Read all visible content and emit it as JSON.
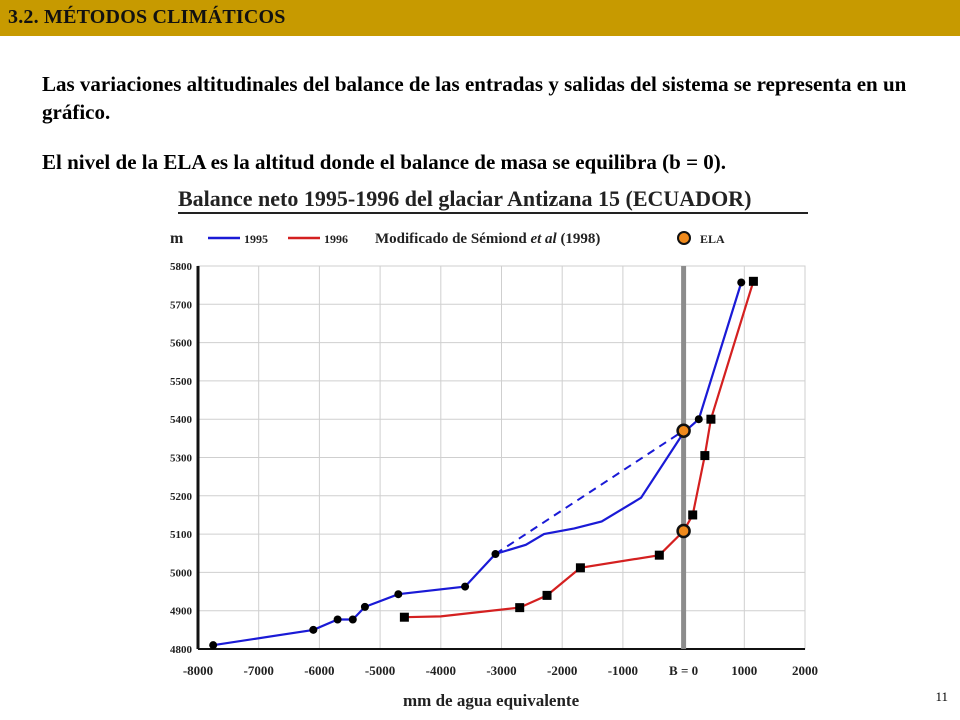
{
  "header": {
    "title": "3.2. MÉTODOS CLIMÁTICOS"
  },
  "text": {
    "para1": "Las variaciones altitudinales del balance de las entradas y salidas del sistema se representa en un gráfico.",
    "para2": "El nivel de la ELA es la altitud donde el balance de masa se equilibra (b = 0)."
  },
  "page_number": "11",
  "chart_data": {
    "type": "line",
    "title": "Balance neto 1995-1996 del glaciar Antizana 15 (ECUADOR)",
    "ylabel": "m",
    "xlabel": "mm de agua equivalente",
    "credit": "Modificado de Sémiond et al (1998)",
    "xlim": [
      -8000,
      2000
    ],
    "ylim": [
      4800,
      5800
    ],
    "x_ticks": [
      {
        "v": -8000,
        "label": "-8000"
      },
      {
        "v": -7000,
        "label": "-7000"
      },
      {
        "v": -6000,
        "label": "-6000"
      },
      {
        "v": -5000,
        "label": "-5000"
      },
      {
        "v": -4000,
        "label": "-4000"
      },
      {
        "v": -3000,
        "label": "-3000"
      },
      {
        "v": -2000,
        "label": "-2000"
      },
      {
        "v": -1000,
        "label": "-1000"
      },
      {
        "v": 0,
        "label": "B = 0"
      },
      {
        "v": 1000,
        "label": "1000"
      },
      {
        "v": 2000,
        "label": "2000"
      }
    ],
    "y_ticks": [
      4800,
      4900,
      5000,
      5100,
      5200,
      5300,
      5400,
      5500,
      5600,
      5700,
      5800
    ],
    "grid": true,
    "colors": {
      "1995": "#1a1ad6",
      "1996": "#d42020",
      "ela": "#f08a1c",
      "zero_line": "#8c8c8c"
    },
    "series": [
      {
        "name": "1995",
        "marker": "circle",
        "points": [
          [
            -7750,
            4810
          ],
          [
            -6100,
            4850
          ],
          [
            -5700,
            4877
          ],
          [
            -5450,
            4877
          ],
          [
            -5250,
            4910
          ],
          [
            -4700,
            4943
          ],
          [
            -3600,
            4963
          ],
          [
            -3100,
            5048
          ],
          [
            -2600,
            5072
          ],
          [
            -2300,
            5100
          ],
          [
            -1800,
            5115
          ],
          [
            -1350,
            5133
          ],
          [
            -700,
            5195
          ],
          [
            0,
            5365
          ],
          [
            250,
            5400
          ],
          [
            950,
            5757
          ]
        ],
        "markers_at": [
          0,
          1,
          2,
          3,
          4,
          5,
          6,
          7,
          14,
          15
        ]
      },
      {
        "name": "1996",
        "marker": "square",
        "points": [
          [
            -4600,
            4883
          ],
          [
            -4000,
            4885
          ],
          [
            -2700,
            4908
          ],
          [
            -2250,
            4940
          ],
          [
            -1700,
            5012
          ],
          [
            -400,
            5045
          ],
          [
            0,
            5108
          ],
          [
            150,
            5150
          ],
          [
            350,
            5305
          ],
          [
            450,
            5400
          ],
          [
            1150,
            5760
          ]
        ],
        "markers_at": [
          0,
          2,
          3,
          4,
          5,
          7,
          8,
          9,
          10
        ]
      }
    ],
    "dashed_extrapolation": {
      "series": "1995",
      "points": [
        [
          -3100,
          5048
        ],
        [
          0,
          5370
        ]
      ]
    },
    "ela_points": [
      [
        0,
        5370
      ],
      [
        0,
        5108
      ]
    ],
    "legend": {
      "placement": "top",
      "ela_label": "ELA"
    }
  }
}
